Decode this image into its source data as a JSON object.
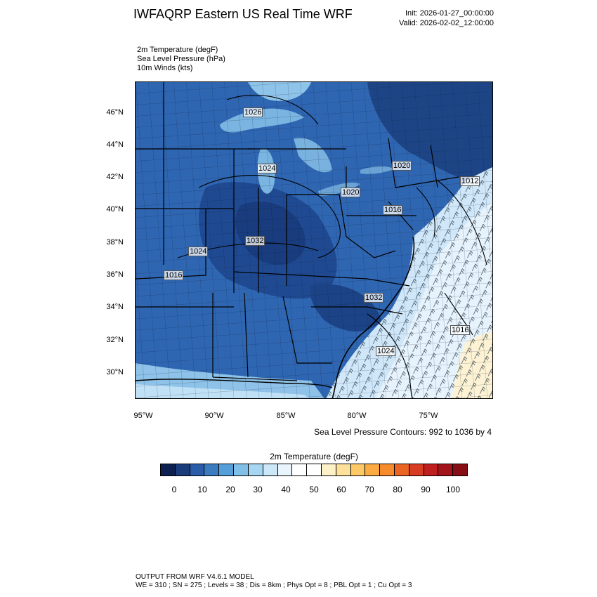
{
  "header": {
    "title": "IWFAQRP Eastern US Real Time WRF",
    "init": "Init: 2026-01-27_00:00:00",
    "valid": "Valid: 2026-02-02_12:00:00"
  },
  "fields": [
    "2m Temperature   (degF)",
    "Sea Level Pressure   (hPa)",
    "10m Winds   (kts)"
  ],
  "map": {
    "lat_labels": [
      "46°N",
      "44°N",
      "42°N",
      "40°N",
      "38°N",
      "36°N",
      "34°N",
      "32°N",
      "30°N"
    ],
    "lon_labels": [
      "95°W",
      "90°W",
      "85°W",
      "80°W",
      "75°W"
    ],
    "contour_labels": [
      "1026",
      "1024",
      "1020",
      "1020",
      "1016",
      "1024",
      "1032",
      "1016",
      "1032",
      "1024",
      "1016",
      "1012"
    ]
  },
  "slp_note": "Sea Level Pressure Contours: 992 to 1036 by 4",
  "colorbar": {
    "title": "2m Temperature  (degF)",
    "ticks": [
      "0",
      "10",
      "20",
      "30",
      "40",
      "50",
      "60",
      "70",
      "80",
      "90",
      "100"
    ],
    "colors": [
      "#0d2150",
      "#1b3c7a",
      "#2a5ca8",
      "#3b7cc0",
      "#559fd8",
      "#7fbfe8",
      "#a6d6f2",
      "#cbe7f8",
      "#e9f5fc",
      "#ffffff",
      "#ffffff",
      "#fdf1c8",
      "#fde19a",
      "#fdc966",
      "#fbab42",
      "#f58b2d",
      "#ea6424",
      "#d83c22",
      "#bf1f1f",
      "#a3141a",
      "#860e14"
    ]
  },
  "footer": {
    "line1": "OUTPUT FROM WRF V4.6.1 MODEL",
    "line2": "WE = 310 ; SN = 275 ; Levels = 38 ; Dis = 8km ; Phys Opt = 8 ; PBL Opt = 1 ; Cu Opt = 3"
  }
}
